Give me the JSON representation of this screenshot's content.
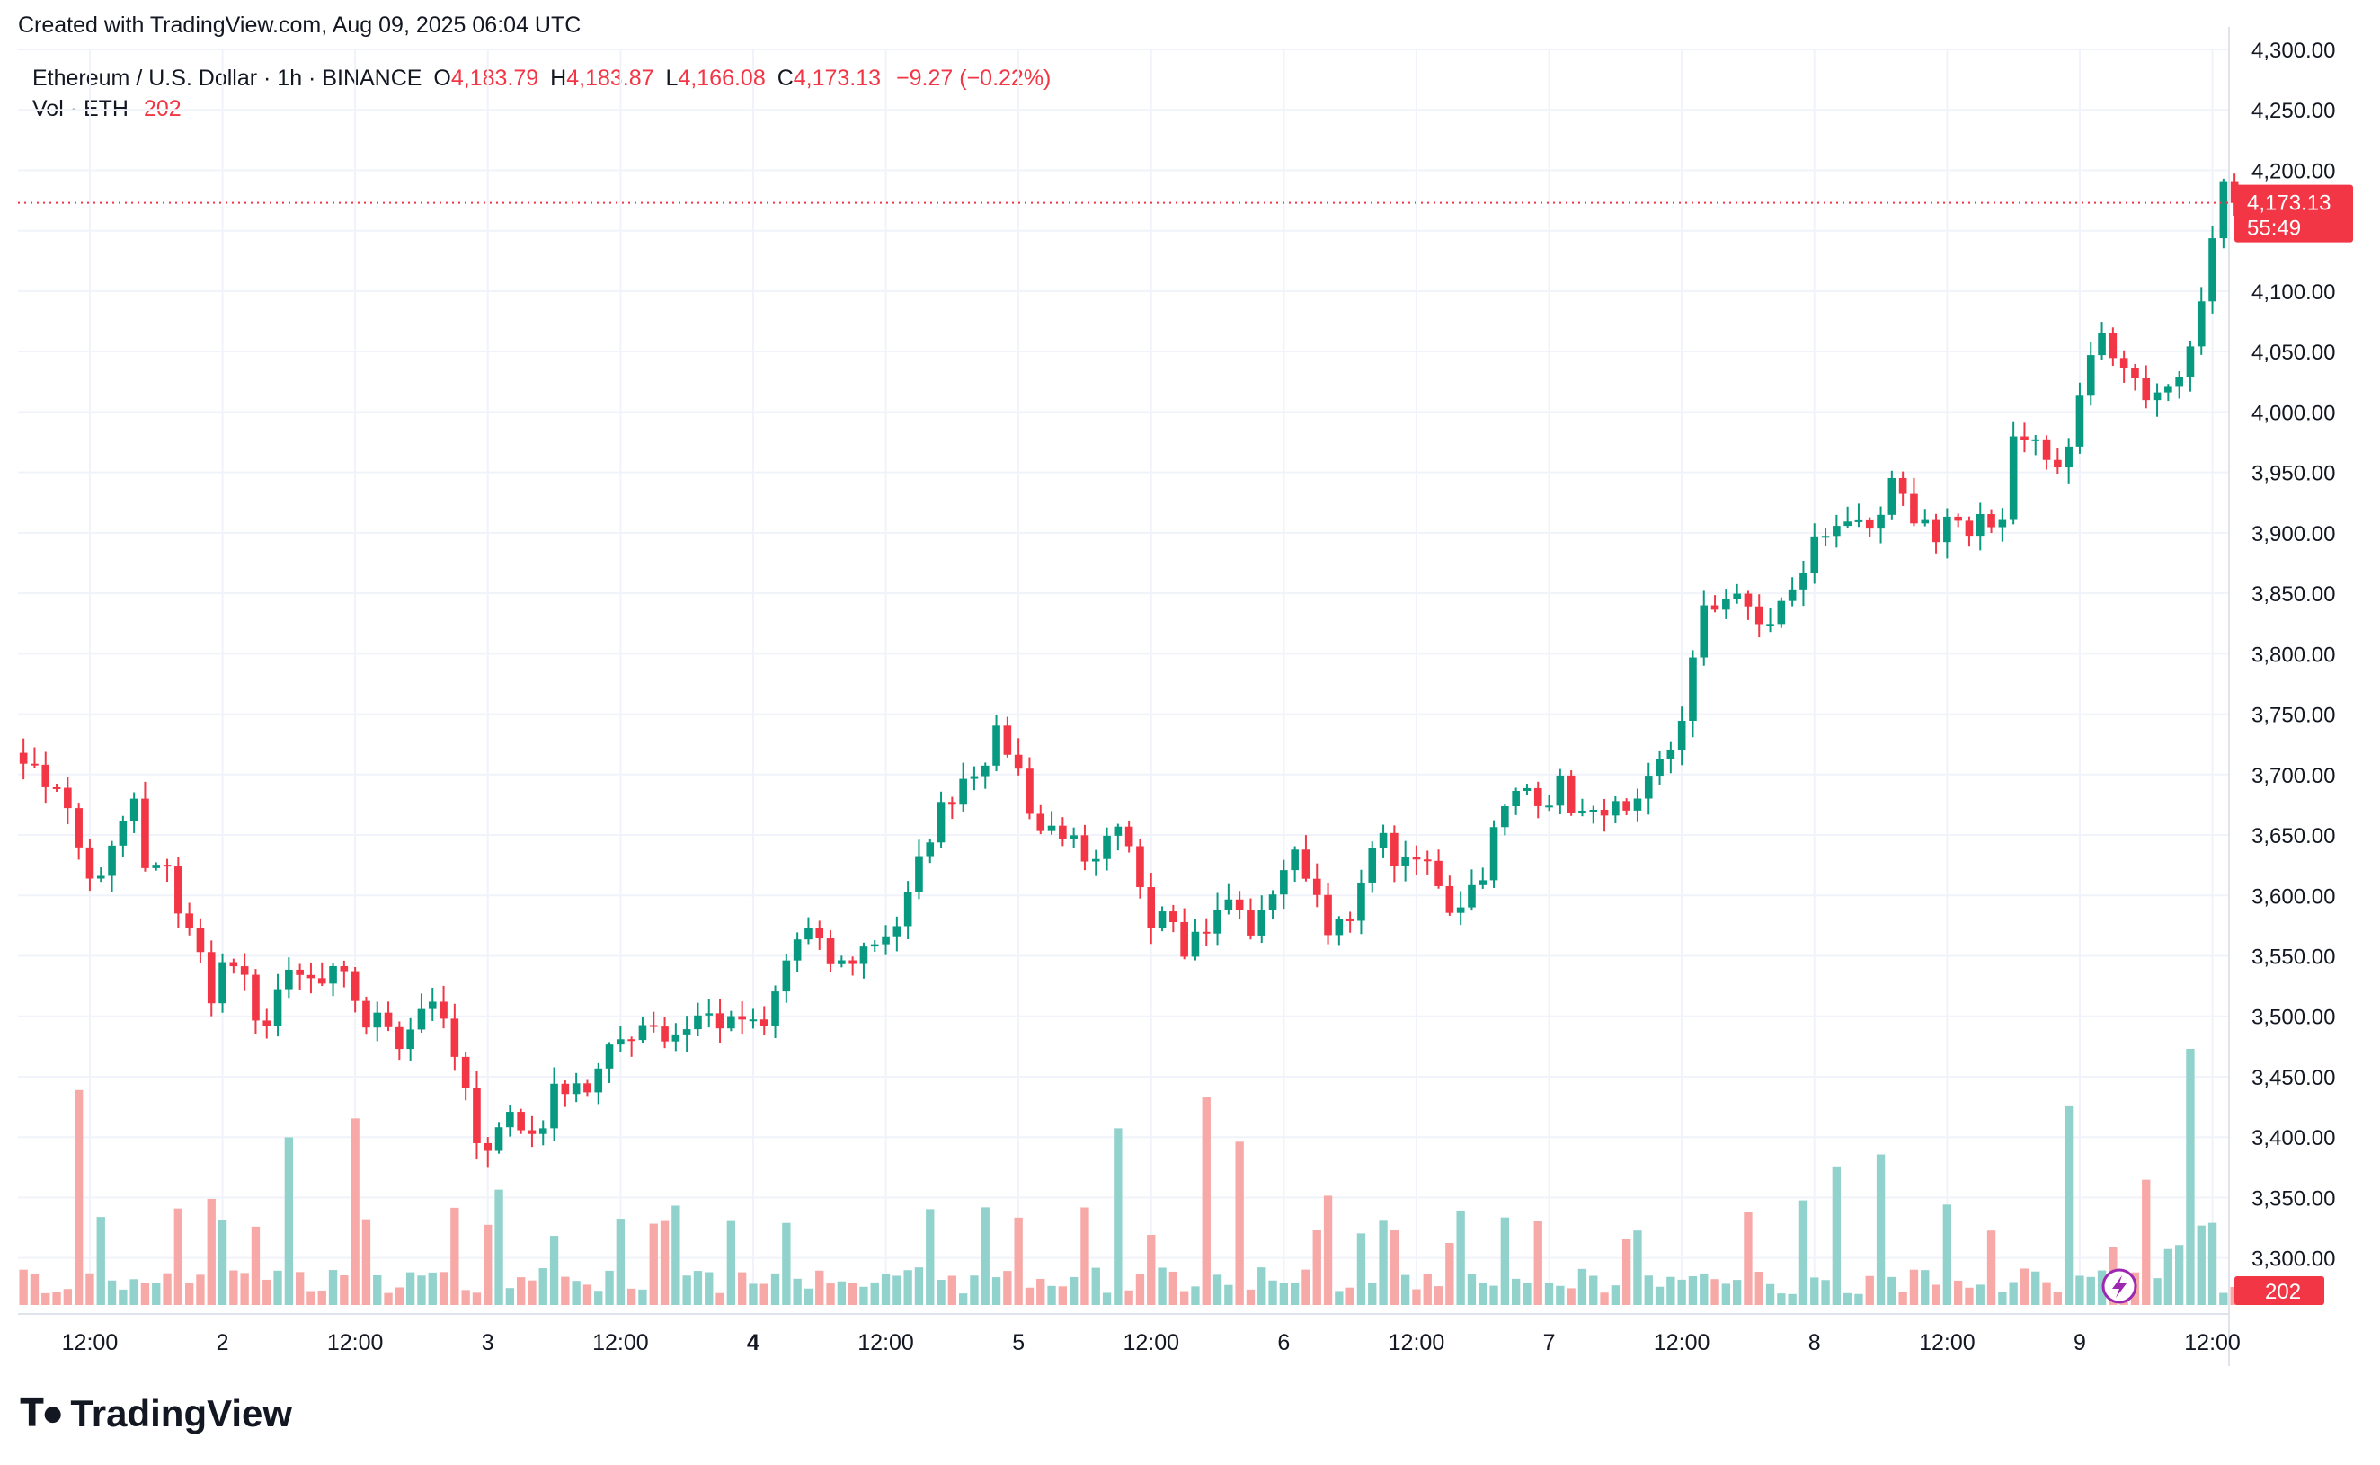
{
  "header": {
    "caption": "Created with TradingView.com, Aug 09, 2025 06:04 UTC"
  },
  "legend": {
    "symbol": "Ethereum / U.S. Dollar · 1h · BINANCE",
    "o_label": "O",
    "o_value": "4,183.79",
    "h_label": "H",
    "h_value": "4,183.87",
    "l_label": "L",
    "l_value": "4,166.08",
    "c_label": "C",
    "c_value": "4,173.13",
    "change": "−9.27 (−0.22%)",
    "vol_label": "Vol · ETH",
    "vol_value": "202"
  },
  "price_tag": {
    "price": "4,173.13",
    "countdown": "55:49"
  },
  "volume_tag": "202",
  "brand": "TradingView",
  "icons": {
    "lightning": "lightning-icon",
    "logo": "tradingview-logo-icon"
  },
  "colors": {
    "up": "#089981",
    "down": "#f23645",
    "vol_up": "#92d2cc",
    "vol_down": "#f7a9a7",
    "grid": "#f0f3fa"
  },
  "chart_data": {
    "type": "candlestick",
    "interval": "1h",
    "ylim": [
      3270,
      4300
    ],
    "y_ticks": [
      "4,300.00",
      "4,250.00",
      "4,200.00",
      "4,150.00",
      "4,100.00",
      "4,050.00",
      "4,000.00",
      "3,950.00",
      "3,900.00",
      "3,850.00",
      "3,800.00",
      "3,750.00",
      "3,700.00",
      "3,650.00",
      "3,600.00",
      "3,550.00",
      "3,500.00",
      "3,450.00",
      "3,400.00",
      "3,350.00",
      "3,300.00"
    ],
    "y_tick_values": [
      4300,
      4250,
      4200,
      4150,
      4100,
      4050,
      4000,
      3950,
      3900,
      3850,
      3800,
      3750,
      3700,
      3650,
      3600,
      3550,
      3500,
      3450,
      3400,
      3350,
      3300
    ],
    "x_ticks": [
      {
        "label": "12:00",
        "bar": 6,
        "bold": false
      },
      {
        "label": "2",
        "bar": 18,
        "bold": false
      },
      {
        "label": "12:00",
        "bar": 30,
        "bold": false
      },
      {
        "label": "3",
        "bar": 42,
        "bold": false
      },
      {
        "label": "12:00",
        "bar": 54,
        "bold": false
      },
      {
        "label": "4",
        "bar": 66,
        "bold": true
      },
      {
        "label": "12:00",
        "bar": 78,
        "bold": false
      },
      {
        "label": "5",
        "bar": 90,
        "bold": false
      },
      {
        "label": "12:00",
        "bar": 102,
        "bold": false
      },
      {
        "label": "6",
        "bar": 114,
        "bold": false
      },
      {
        "label": "12:00",
        "bar": 126,
        "bold": false
      },
      {
        "label": "7",
        "bar": 138,
        "bold": false
      },
      {
        "label": "12:00",
        "bar": 150,
        "bold": false
      },
      {
        "label": "8",
        "bar": 162,
        "bold": false
      },
      {
        "label": "12:00",
        "bar": 174,
        "bold": false
      },
      {
        "label": "9",
        "bar": 186,
        "bold": false
      },
      {
        "label": "12:00",
        "bar": 198,
        "bold": false
      }
    ],
    "total_slots": 200,
    "candle_stops": [
      3720,
      3690,
      3700,
      3660,
      3620,
      3610,
      3650,
      3680,
      3600,
      3640,
      3580,
      3560,
      3520,
      3550,
      3530,
      3480,
      3520,
      3530,
      3530,
      3525,
      3535,
      3520,
      3490,
      3500,
      3480,
      3500,
      3520,
      3480,
      3450,
      3380,
      3410,
      3420,
      3400,
      3410,
      3440,
      3450,
      3440,
      3460,
      3480,
      3490,
      3500,
      3480,
      3490,
      3500,
      3500,
      3490,
      3500,
      3480,
      3520,
      3560,
      3570,
      3550,
      3540,
      3550,
      3560,
      3570,
      3580,
      3620,
      3660,
      3680,
      3700,
      3710,
      3730,
      3720,
      3680,
      3650,
      3660,
      3640,
      3610,
      3640,
      3650,
      3620,
      3580,
      3600,
      3560,
      3570,
      3580,
      3600,
      3570,
      3580,
      3620,
      3630,
      3620,
      3580,
      3570,
      3580,
      3650,
      3640,
      3620,
      3630,
      3620,
      3590,
      3600,
      3620,
      3660,
      3680,
      3690,
      3680,
      3690,
      3670,
      3660,
      3680,
      3660,
      3670,
      3700,
      3720,
      3760,
      3830,
      3840,
      3860,
      3830,
      3820,
      3840,
      3850,
      3890,
      3900,
      3920,
      3900,
      3890,
      3940,
      3920,
      3910,
      3900,
      3920,
      3890,
      3910,
      3900,
      3990,
      3980,
      3960,
      3950,
      4000,
      4060,
      4060,
      4040,
      4020,
      4010,
      4030,
      4040,
      4100,
      4190,
      4173
    ],
    "candles": "OHLC series of about 190 one-hour candles generated by script from candle_stops; see script",
    "volume_peak_bars": [
      5,
      24,
      30,
      43,
      99,
      107,
      110,
      118,
      164,
      168,
      185,
      192,
      196,
      201
    ]
  }
}
